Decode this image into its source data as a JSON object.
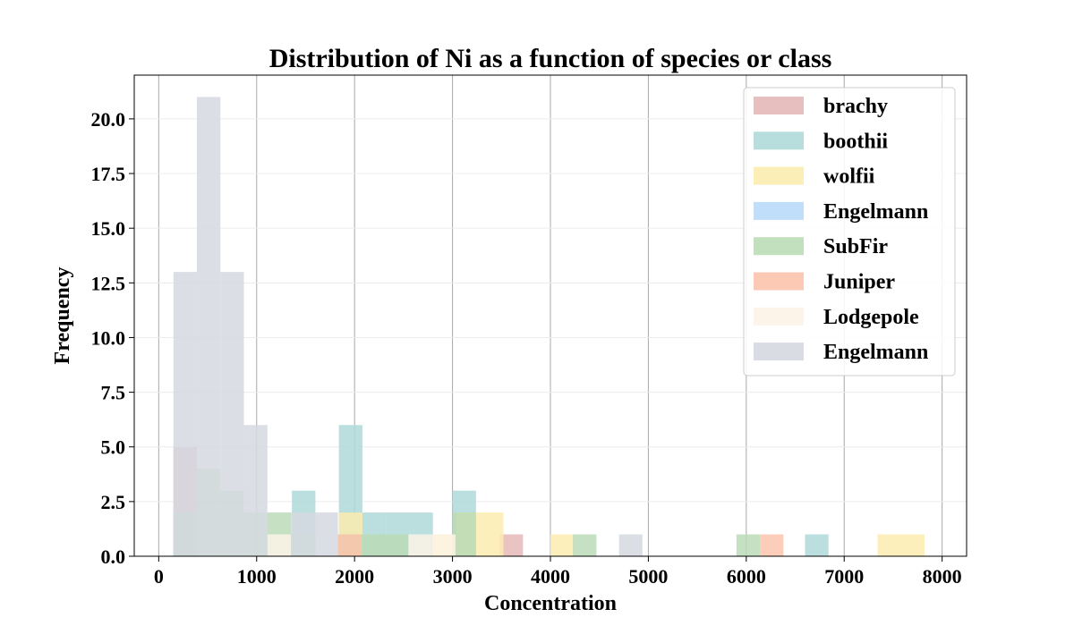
{
  "chart_data": {
    "type": "bar",
    "title": "Distribution of Ni as a function of species or class",
    "xlabel": "Concentration",
    "ylabel": "Frequency",
    "xlim": [
      -250,
      8250
    ],
    "ylim": [
      0,
      22
    ],
    "xticks": [
      0,
      1000,
      2000,
      3000,
      4000,
      5000,
      6000,
      7000,
      8000
    ],
    "xtick_labels": [
      "0",
      "1000",
      "2000",
      "3000",
      "4000",
      "5000",
      "6000",
      "7000",
      "8000"
    ],
    "yticks": [
      0,
      2.5,
      5,
      7.5,
      10,
      12.5,
      15,
      17.5,
      20
    ],
    "ytick_labels": [
      "0.0",
      "2.5",
      "5.0",
      "7.5",
      "10.0",
      "12.5",
      "15.0",
      "17.5",
      "20.0"
    ],
    "grid": {
      "x": "major lines",
      "y": "faint"
    },
    "legend_position": "top-right",
    "series": [
      {
        "name": "brachy",
        "color": "#e6b8b8",
        "bins": [
          {
            "x0": 150,
            "x1": 390,
            "count": 5
          },
          {
            "x0": 3480,
            "x1": 3720,
            "count": 1
          }
        ]
      },
      {
        "name": "boothii",
        "color": "#afd9d8",
        "bins": [
          {
            "x0": 1360,
            "x1": 1600,
            "count": 3
          },
          {
            "x0": 1840,
            "x1": 2080,
            "count": 6
          },
          {
            "x0": 2080,
            "x1": 2320,
            "count": 2
          },
          {
            "x0": 2320,
            "x1": 2560,
            "count": 2
          },
          {
            "x0": 2560,
            "x1": 2800,
            "count": 2
          },
          {
            "x0": 3000,
            "x1": 3240,
            "count": 3
          },
          {
            "x0": 6600,
            "x1": 6840,
            "count": 1
          }
        ]
      },
      {
        "name": "wolfii",
        "color": "#fbecaf",
        "bins": [
          {
            "x0": 1840,
            "x1": 2080,
            "count": 2
          },
          {
            "x0": 2800,
            "x1": 3040,
            "count": 1
          },
          {
            "x0": 3040,
            "x1": 3280,
            "count": 2
          },
          {
            "x0": 3280,
            "x1": 3520,
            "count": 2
          },
          {
            "x0": 4000,
            "x1": 4240,
            "count": 1
          },
          {
            "x0": 7340,
            "x1": 7820,
            "count": 1
          }
        ]
      },
      {
        "name": "Engelmann",
        "color": "#b9daf8",
        "bins": [
          {
            "x0": 1360,
            "x1": 1600,
            "count": 1
          }
        ]
      },
      {
        "name": "SubFir",
        "color": "#bbdbb7",
        "bins": [
          {
            "x0": 150,
            "x1": 390,
            "count": 2
          },
          {
            "x0": 390,
            "x1": 630,
            "count": 4
          },
          {
            "x0": 630,
            "x1": 870,
            "count": 3
          },
          {
            "x0": 870,
            "x1": 1110,
            "count": 2
          },
          {
            "x0": 1110,
            "x1": 1350,
            "count": 2
          },
          {
            "x0": 1350,
            "x1": 1590,
            "count": 1
          },
          {
            "x0": 1830,
            "x1": 2070,
            "count": 1
          },
          {
            "x0": 2070,
            "x1": 2310,
            "count": 1
          },
          {
            "x0": 2310,
            "x1": 2550,
            "count": 1
          },
          {
            "x0": 3000,
            "x1": 3240,
            "count": 2
          },
          {
            "x0": 4230,
            "x1": 4470,
            "count": 1
          },
          {
            "x0": 5900,
            "x1": 6140,
            "count": 1
          }
        ]
      },
      {
        "name": "Juniper",
        "color": "#fcc4ac",
        "bins": [
          {
            "x0": 1830,
            "x1": 2070,
            "count": 1
          },
          {
            "x0": 6140,
            "x1": 6380,
            "count": 1
          }
        ]
      },
      {
        "name": "Lodgepole",
        "color": "#fdf3e7",
        "bins": [
          {
            "x0": 1110,
            "x1": 1350,
            "count": 1
          },
          {
            "x0": 2550,
            "x1": 2790,
            "count": 1
          },
          {
            "x0": 2790,
            "x1": 3030,
            "count": 1
          }
        ]
      },
      {
        "name": "Engelmann",
        "color": "#d5d9e0",
        "bins": [
          {
            "x0": 150,
            "x1": 390,
            "count": 13
          },
          {
            "x0": 390,
            "x1": 630,
            "count": 21
          },
          {
            "x0": 630,
            "x1": 870,
            "count": 13
          },
          {
            "x0": 870,
            "x1": 1110,
            "count": 6
          },
          {
            "x0": 1350,
            "x1": 1590,
            "count": 2
          },
          {
            "x0": 1590,
            "x1": 1830,
            "count": 2
          },
          {
            "x0": 4700,
            "x1": 4940,
            "count": 1
          }
        ]
      }
    ]
  }
}
